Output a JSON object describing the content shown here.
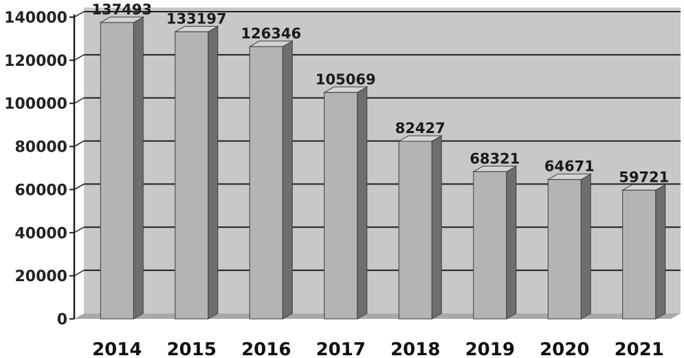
{
  "chart_data": {
    "type": "bar",
    "title": "",
    "xlabel": "",
    "ylabel": "",
    "categories": [
      "2014",
      "2015",
      "2016",
      "2017",
      "2018",
      "2019",
      "2020",
      "2021"
    ],
    "values": [
      137493,
      133197,
      126346,
      105069,
      82427,
      68321,
      64671,
      59721
    ],
    "value_labels": [
      "137493",
      "133197",
      "126346",
      "105069",
      "82427",
      "68321",
      "64671",
      "59721"
    ],
    "ylim": [
      0,
      140000
    ],
    "yticks": [
      0,
      20000,
      40000,
      60000,
      80000,
      100000,
      120000,
      140000
    ],
    "ytick_labels": [
      "0",
      "20000",
      "40000",
      "60000",
      "80000",
      "100000",
      "120000",
      "140000"
    ],
    "grid": true,
    "legend": "none",
    "style": "3d",
    "colors": {
      "bar_front": "#b4b4b4",
      "bar_side": "#6e6e6e",
      "bar_top": "#d4d4d4",
      "wall": "#c8c8c8",
      "floor": "#a9a9a9",
      "gridline": "#1e1e1e",
      "axis": "#1e1e1e"
    }
  }
}
